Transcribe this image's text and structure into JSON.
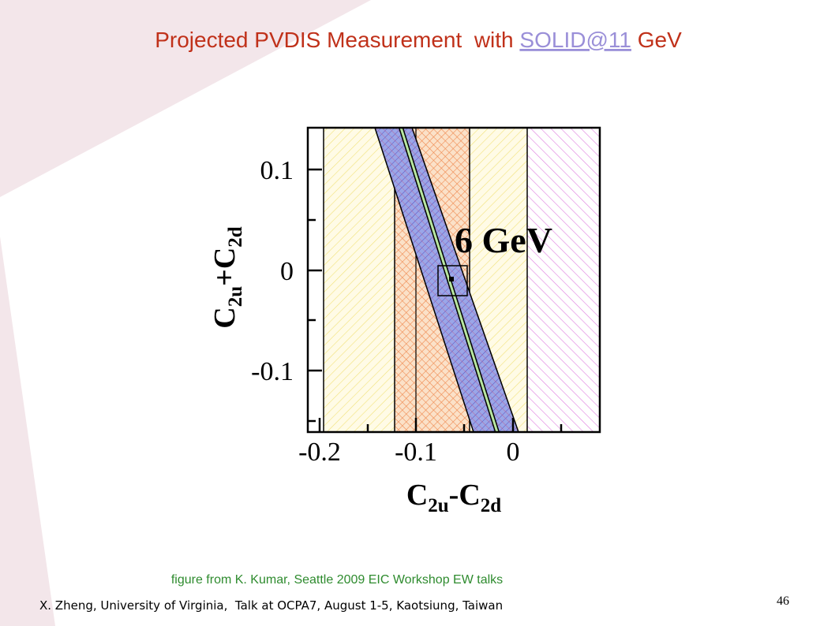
{
  "title": {
    "before": "Projected PVDIS Measurement  with ",
    "link": "SOLID@11",
    "after": " GeV"
  },
  "plot": {
    "x_ticks": [
      "-0.2",
      "-0.1",
      "0"
    ],
    "y_ticks": [
      "0.1",
      "0",
      "-0.1"
    ],
    "x_label": [
      "C",
      "2u",
      "-C",
      "2d"
    ],
    "y_label": [
      "C",
      "2u",
      "+C",
      "2d"
    ],
    "annotation": "6 GeV"
  },
  "caption": "figure from K. Kumar, Seattle 2009 EIC Workshop EW talks",
  "footer": "X. Zheng, University of Virginia,  Talk at OCPA7, August 1-5, Kaotsiung, Taiwan",
  "page_number": "46"
}
